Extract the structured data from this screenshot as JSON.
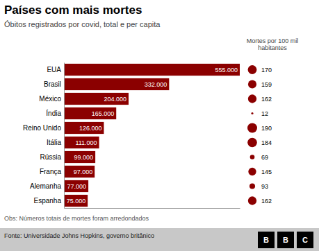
{
  "chart_data": {
    "type": "bar",
    "orientation": "horizontal",
    "title": "Países com mais mortes",
    "subtitle": "Óbitos registrados por covid, total e per capita",
    "footnote": "Obs: Números totais de mortes foram arredondados",
    "source": "Fonte: Universidade Johns Hopkins, governo britânico",
    "logo": "BBC",
    "categories": [
      "EUA",
      "Brasil",
      "México",
      "Índia",
      "Reino Unido",
      "Itália",
      "Rússia",
      "França",
      "Alemanha",
      "Espanha"
    ],
    "series": [
      {
        "type": "bar",
        "color": "#8B0000",
        "values": [
          555000,
          332000,
          204000,
          165000,
          126000,
          111000,
          99000,
          97000,
          77000,
          75000
        ],
        "value_labels": [
          "555.000",
          "332.000",
          "204.000",
          "165.000",
          "126.000",
          "111.000",
          "99.000",
          "97.000",
          "77.000",
          "75.000"
        ]
      },
      {
        "type": "scatter",
        "name": "Mortes por 100 mil\nhabitantes",
        "color": "#8B0000",
        "marker": "circle",
        "values": [
          170,
          159,
          162,
          12,
          190,
          184,
          69,
          145,
          93,
          162
        ]
      }
    ],
    "xlim": [
      0,
      555000
    ],
    "data_labels": true,
    "tick_labels": "y",
    "grid": false
  }
}
